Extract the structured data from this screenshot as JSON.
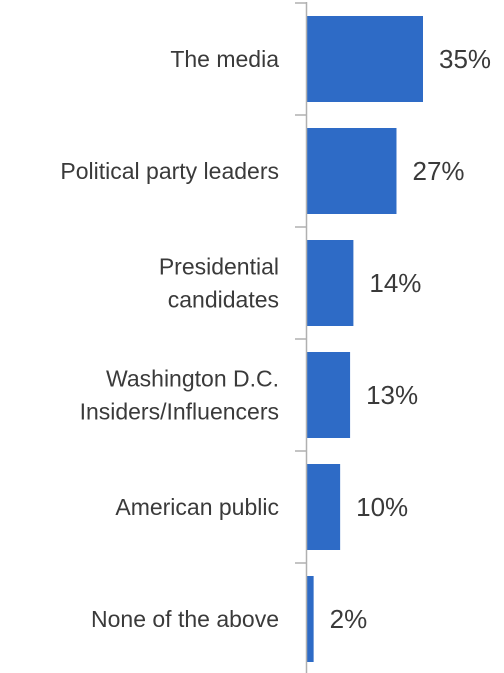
{
  "chart_data": {
    "type": "bar",
    "orientation": "horizontal",
    "categories": [
      "The media",
      "Political party leaders",
      "Presidential candidates",
      "Washington D.C. Insiders/Influencers",
      "American public",
      "None of the above"
    ],
    "category_lines": [
      [
        "The media"
      ],
      [
        "Political party leaders"
      ],
      [
        "Presidential",
        "candidates"
      ],
      [
        "Washington D.C.",
        "Insiders/Influencers"
      ],
      [
        "American public"
      ],
      [
        "None of the above"
      ]
    ],
    "values": [
      35,
      27,
      14,
      13,
      10,
      2
    ],
    "value_labels": [
      "35%",
      "27%",
      "14%",
      "13%",
      "10%",
      "2%"
    ],
    "xlim": [
      0,
      35
    ],
    "unit": "%",
    "grid": false,
    "legend": "none",
    "bar_color": "#2e6bc6",
    "axis_color": "#b0b0b0",
    "text_color": "#3a3a3a"
  }
}
